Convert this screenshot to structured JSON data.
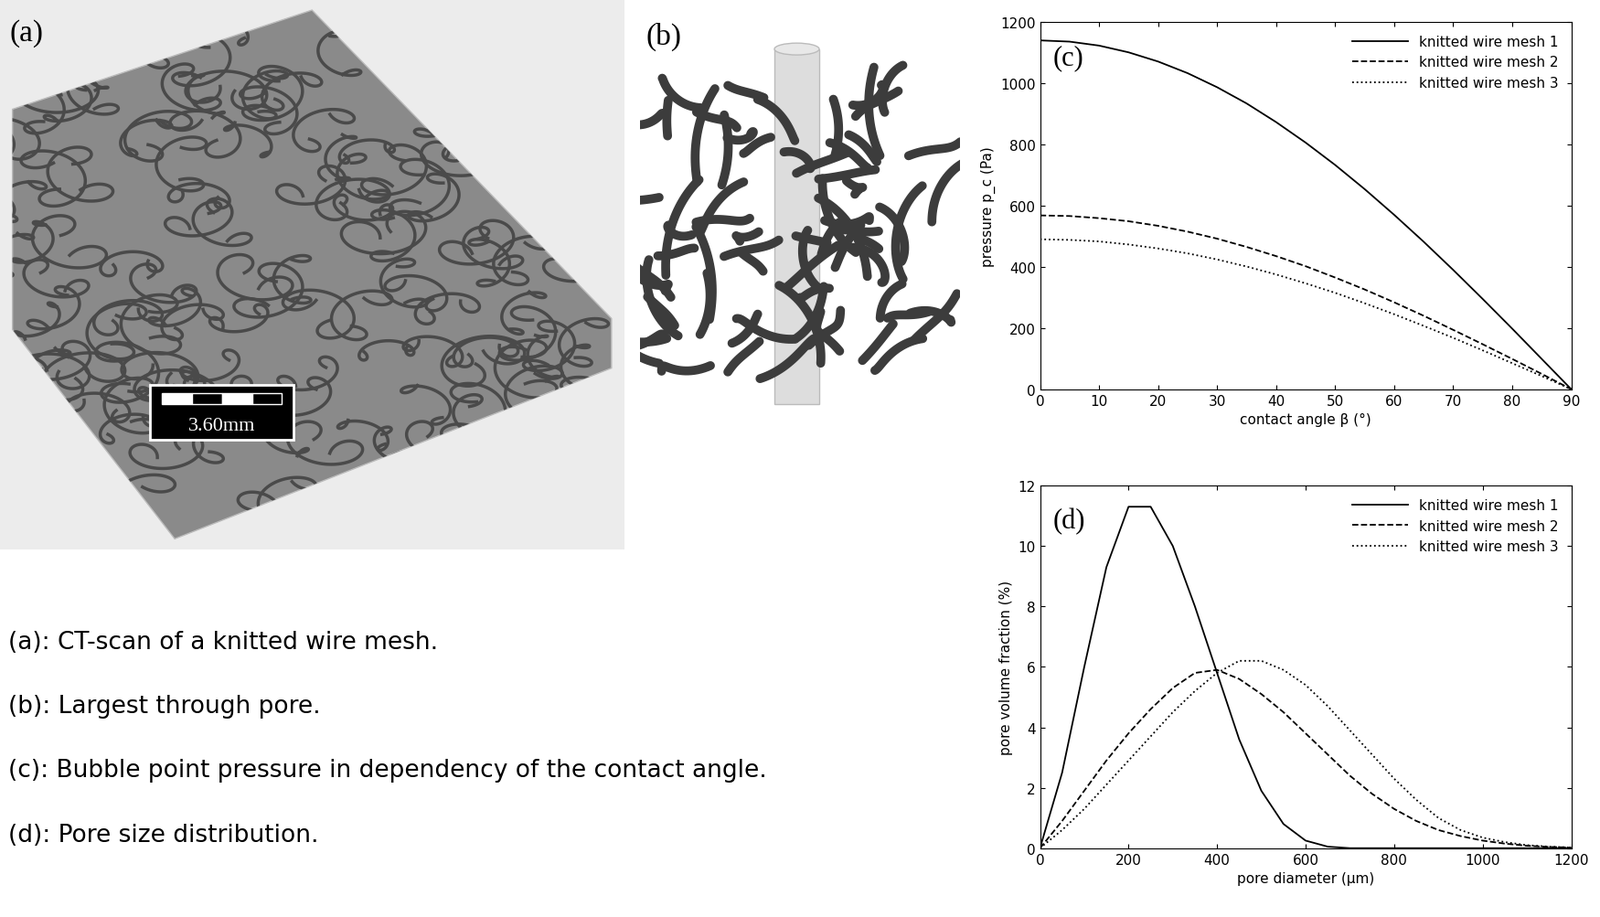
{
  "panels": [
    {
      "label": "(a)",
      "scale_bar": "3.60mm"
    },
    {
      "label": "(b)"
    }
  ],
  "captions": [
    "(a): CT-scan of a knitted wire mesh.",
    "(b): Largest through pore.",
    "(c): Bubble point pressure in dependency of the contact angle.",
    "(d): Pore size distribution."
  ],
  "chart_data": [
    {
      "type": "line",
      "label": "(c)",
      "x": [
        0,
        5,
        10,
        15,
        20,
        25,
        30,
        35,
        40,
        45,
        50,
        55,
        60,
        65,
        70,
        75,
        80,
        85,
        90
      ],
      "series": [
        {
          "name": "knitted wire mesh 1",
          "color": "#000000",
          "line_style": "solid",
          "values": [
            1140,
            1136,
            1123,
            1101,
            1071,
            1033,
            987,
            934,
            873,
            806,
            733,
            654,
            570,
            482,
            390,
            295,
            198,
            99,
            0
          ]
        },
        {
          "name": "knitted wire mesh 2",
          "color": "#000000",
          "line_style": "dashed",
          "values": [
            568,
            566,
            559,
            549,
            534,
            515,
            492,
            465,
            435,
            402,
            365,
            326,
            284,
            240,
            194,
            147,
            99,
            50,
            0
          ]
        },
        {
          "name": "knitted wire mesh 3",
          "color": "#000000",
          "line_style": "dotted",
          "values": [
            490,
            488,
            483,
            473,
            460,
            444,
            424,
            401,
            375,
            346,
            315,
            281,
            245,
            207,
            168,
            127,
            85,
            43,
            0
          ]
        }
      ],
      "x_label": "contact angle β (°)",
      "y_label": "pressure p_c (Pa)",
      "xlim": [
        0,
        90
      ],
      "ylim": [
        0,
        1200
      ],
      "xticks": [
        0,
        10,
        20,
        30,
        40,
        50,
        60,
        70,
        80,
        90
      ],
      "yticks": [
        0,
        200,
        400,
        600,
        800,
        1000,
        1200
      ],
      "legend": "upper right"
    },
    {
      "type": "line",
      "label": "(d)",
      "x": [
        0,
        50,
        100,
        150,
        200,
        250,
        300,
        350,
        400,
        450,
        500,
        550,
        600,
        650,
        700,
        750,
        800,
        850,
        900,
        950,
        1000,
        1050,
        1100,
        1150,
        1200
      ],
      "series": [
        {
          "name": "knitted wire mesh 1",
          "color": "#000000",
          "line_style": "solid",
          "values": [
            0,
            2.5,
            6.0,
            9.3,
            11.3,
            11.3,
            10.0,
            8.0,
            5.8,
            3.6,
            1.9,
            0.8,
            0.25,
            0.05,
            0,
            0,
            0,
            0,
            0,
            0,
            0,
            0,
            0,
            0,
            0
          ]
        },
        {
          "name": "knitted wire mesh 2",
          "color": "#000000",
          "line_style": "dashed",
          "values": [
            0,
            0.9,
            1.9,
            2.9,
            3.8,
            4.6,
            5.3,
            5.8,
            5.9,
            5.6,
            5.1,
            4.5,
            3.8,
            3.1,
            2.4,
            1.8,
            1.3,
            0.9,
            0.6,
            0.4,
            0.25,
            0.15,
            0.08,
            0.04,
            0.02
          ]
        },
        {
          "name": "knitted wire mesh 3",
          "color": "#000000",
          "line_style": "dotted",
          "values": [
            0,
            0.6,
            1.3,
            2.1,
            2.9,
            3.7,
            4.5,
            5.2,
            5.8,
            6.2,
            6.2,
            5.9,
            5.4,
            4.7,
            3.9,
            3.1,
            2.3,
            1.6,
            1.0,
            0.6,
            0.35,
            0.2,
            0.1,
            0.05,
            0.02
          ]
        }
      ],
      "x_label": "pore diameter (µm)",
      "y_label": "pore volume fraction (%)",
      "xlim": [
        0,
        1200
      ],
      "ylim": [
        0,
        12
      ],
      "xticks": [
        0,
        200,
        400,
        600,
        800,
        1000,
        1200
      ],
      "yticks": [
        0,
        2,
        4,
        6,
        8,
        10,
        12
      ],
      "legend": "upper right"
    }
  ]
}
